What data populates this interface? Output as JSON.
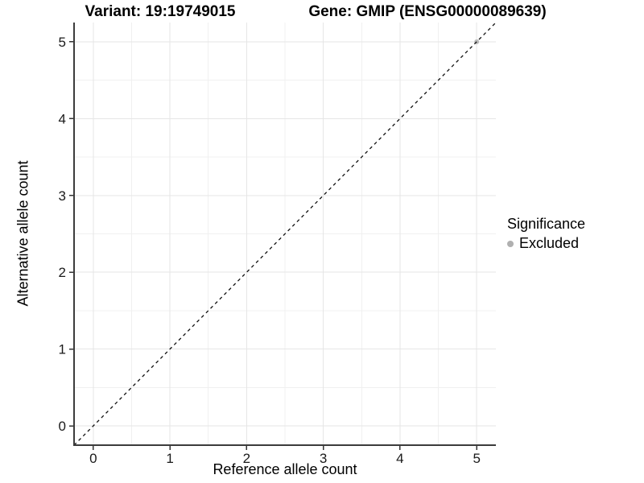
{
  "chart_data": {
    "type": "scatter",
    "title_left": "Variant: 19:19749015",
    "title_right": "Gene: GMIP (ENSG00000089639)",
    "xlabel": "Reference allele count",
    "ylabel": "Alternative allele count",
    "xlim": [
      -0.25,
      5.25
    ],
    "ylim": [
      -0.25,
      5.25
    ],
    "x_ticks": [
      0,
      1,
      2,
      3,
      4,
      5
    ],
    "y_ticks": [
      0,
      1,
      2,
      3,
      4,
      5
    ],
    "minor_step": 0.5,
    "grid": "major+minor",
    "reference_line": {
      "type": "identity y=x",
      "style": "dashed",
      "color": "#111111"
    },
    "series": [
      {
        "name": "Excluded",
        "color": "#b9b9b9",
        "points": [
          {
            "x": 5,
            "y": 5
          }
        ]
      }
    ],
    "legend": {
      "title": "Significance",
      "position": "right",
      "entries": [
        {
          "label": "Excluded",
          "color": "#b0b0b0"
        }
      ]
    },
    "colors": {
      "major_grid": "#e6e6e6",
      "minor_grid": "#f0f0f0",
      "axis_line": "#3c3c3c",
      "tick_mark": "#333333",
      "tick_text": "#1a1a1a",
      "background": "#ffffff"
    }
  }
}
